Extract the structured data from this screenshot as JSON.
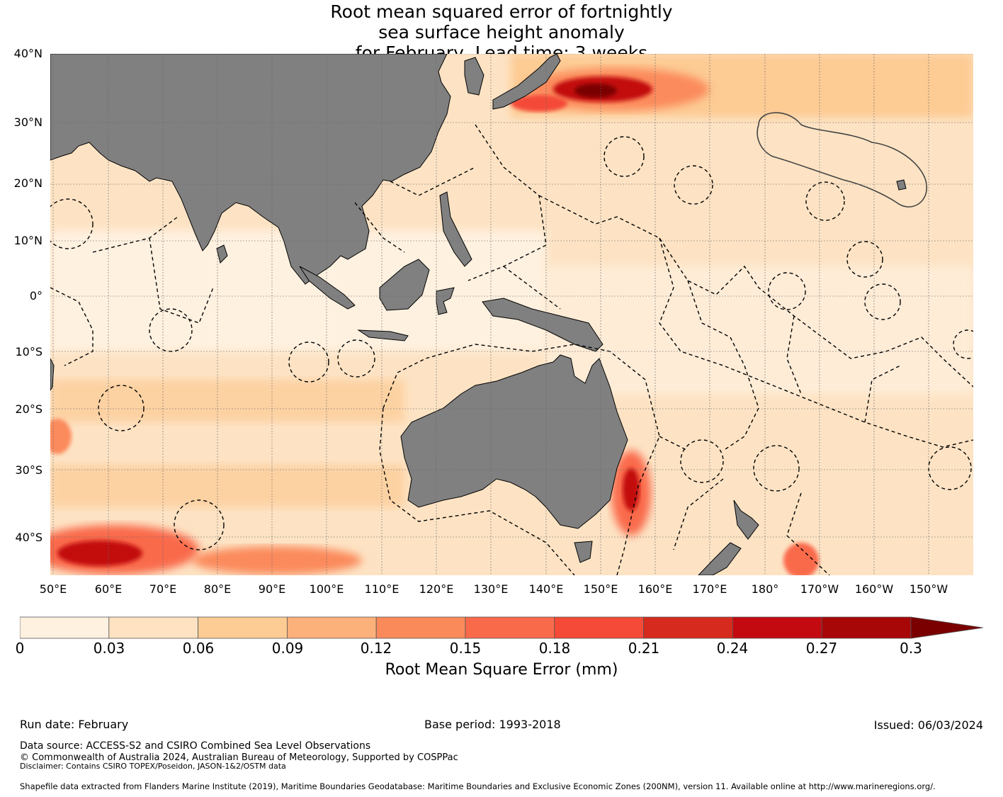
{
  "title": {
    "line1": "Root mean squared error of fortnightly",
    "line2": "sea surface height anomaly",
    "line3": "for February, Lead time: 3 weeks"
  },
  "latitude_labels": [
    "40°N",
    "30°N",
    "20°N",
    "10°N",
    "0°",
    "10°S",
    "20°S",
    "30°S",
    "40°S"
  ],
  "longitude_labels": [
    "50°E",
    "60°E",
    "70°E",
    "80°E",
    "90°E",
    "100°E",
    "110°E",
    "120°E",
    "130°E",
    "140°E",
    "150°E",
    "160°E",
    "170°E",
    "180°",
    "170°W",
    "160°W",
    "150°W"
  ],
  "colorbar": {
    "ticks": [
      "0",
      "0.03",
      "0.06",
      "0.09",
      "0.12",
      "0.15",
      "0.18",
      "0.21",
      "0.24",
      "0.27",
      "0.3"
    ],
    "colors": [
      "#fff1e0",
      "#fee2c2",
      "#fdcb94",
      "#fcb07a",
      "#fb8a5b",
      "#f96a4b",
      "#f44a37",
      "#d62a1e",
      "#c30a10",
      "#a80708",
      "#7a0000"
    ],
    "label": "Root Mean Square Error (mm)",
    "extend": "max"
  },
  "land_color": "#808080",
  "footer": {
    "run_date": "Run date: February",
    "base_period": "Base period: 1993-2018",
    "issued": "Issued: 06/03/2024",
    "data_source": "Data source: ACCESS-S2 and CSIRO Combined Sea Level Observations",
    "copyright": "© Commonwealth of Australia 2024, Australian Bureau of Meteorology, Supported by COSPPac",
    "disclaimer": "Disclaimer: Contains CSIRO TOPEX/Poseidon, JASON-1&2/OSTM data",
    "shapefile": "Shapefile data extracted from Flanders Marine Institute (2019), Maritime Boundaries Geodatabase: Maritime Boundaries and Exclusive Economic Zones (200NM), version 11. Available online at http://www.marineregions.org/."
  }
}
